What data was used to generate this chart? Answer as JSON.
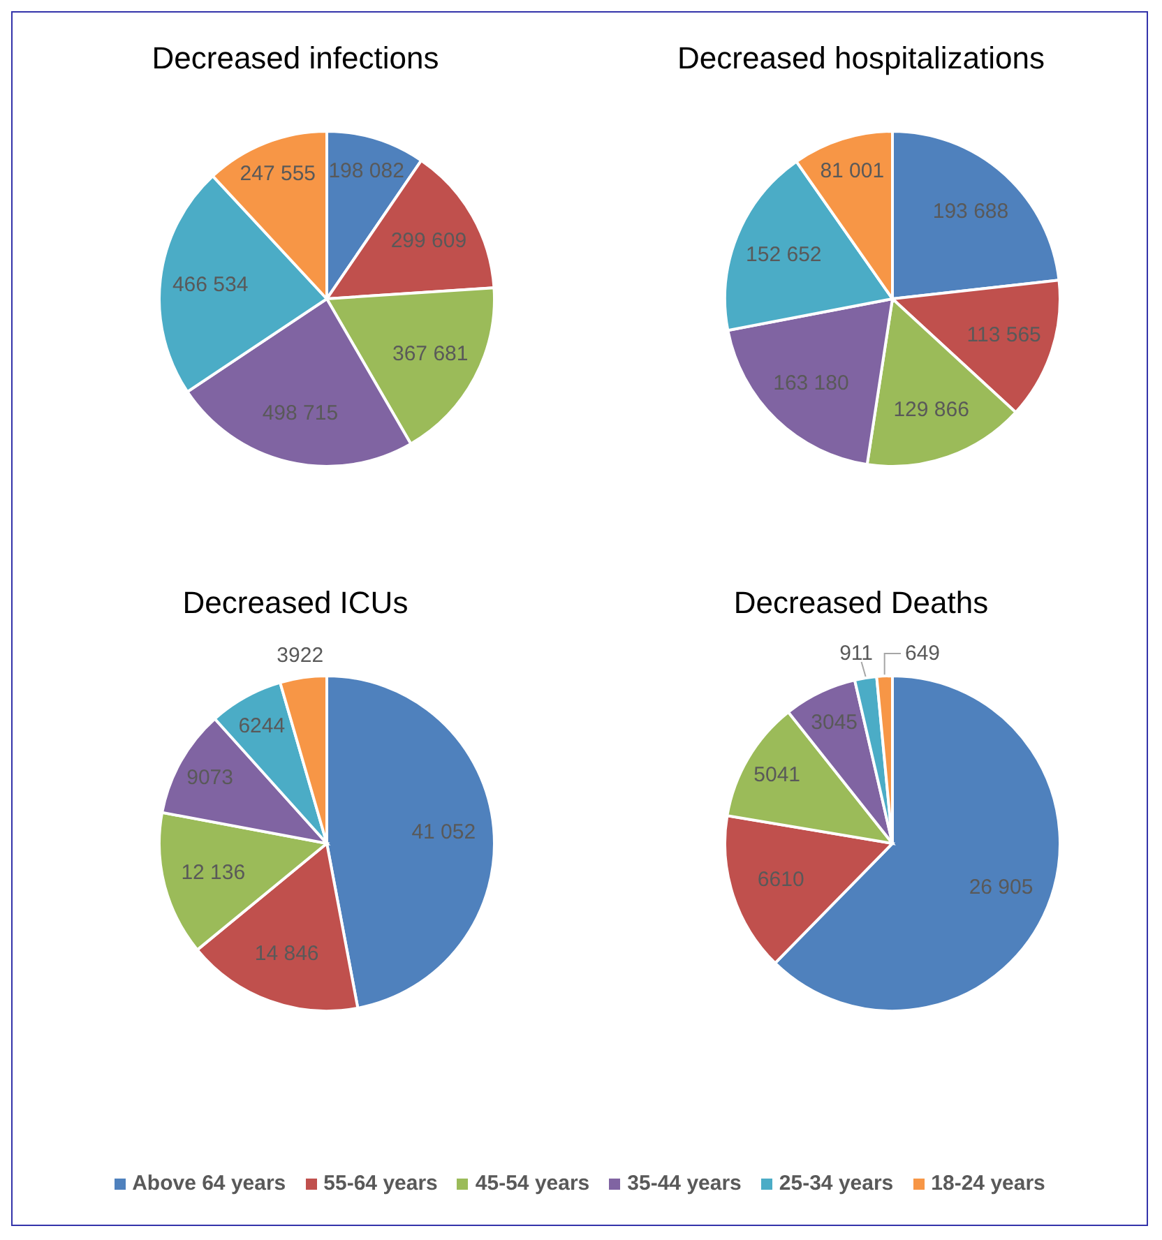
{
  "chart_data": [
    {
      "type": "pie",
      "title": "Decreased infections",
      "categories": [
        "Above 64 years",
        "55-64 years",
        "45-54 years",
        "35-44 years",
        "25-34 years",
        "18-24 years"
      ],
      "values": [
        198082,
        299609,
        367681,
        498715,
        466534,
        247555
      ],
      "colors": [
        "#4f81bd",
        "#c0504d",
        "#9bbb59",
        "#8064a2",
        "#4bacc6",
        "#f79646"
      ],
      "value_labels": [
        "198 082",
        "299 609",
        "367 681",
        "498 715",
        "466 534",
        "247 555"
      ],
      "legend": "bottom"
    },
    {
      "type": "pie",
      "title": "Decreased hospitalizations",
      "categories": [
        null,
        null,
        null,
        null,
        null,
        null
      ],
      "values": [
        193688,
        113565,
        129866,
        163180,
        152652,
        81001
      ],
      "colors": [
        "#4f81bd",
        "#c0504d",
        "#9bbb59",
        "#8064a2",
        "#4bacc6",
        "#f79646"
      ],
      "value_labels": [
        "193 688",
        "113 565",
        "129 866",
        "163 180",
        "152 652",
        "81 001"
      ]
    },
    {
      "type": "pie",
      "title": "Decreased ICUs",
      "categories": [
        null,
        null,
        null,
        null,
        null,
        null
      ],
      "values": [
        41052,
        14846,
        12136,
        9073,
        6244,
        3922
      ],
      "colors": [
        "#4f81bd",
        "#c0504d",
        "#9bbb59",
        "#8064a2",
        "#4bacc6",
        "#f79646"
      ],
      "value_labels": [
        "41 052",
        "14 846",
        "12 136",
        "9073",
        "6244",
        "3922"
      ]
    },
    {
      "type": "pie",
      "title": "Decreased Deaths",
      "categories": [
        null,
        null,
        null,
        null,
        null,
        null
      ],
      "values": [
        26905,
        6610,
        5041,
        3045,
        911,
        649
      ],
      "colors": [
        "#4f81bd",
        "#c0504d",
        "#9bbb59",
        "#8064a2",
        "#4bacc6",
        "#f79646"
      ],
      "value_labels": [
        "26 905",
        "6610",
        "5041",
        "3045",
        "911",
        "649"
      ]
    }
  ]
}
